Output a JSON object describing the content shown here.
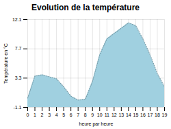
{
  "chart_data": {
    "type": "area",
    "title": "Evolution de la température",
    "xlabel": "heure par heure",
    "ylabel": "Température en °C",
    "x": [
      0,
      1,
      2,
      3,
      4,
      5,
      6,
      7,
      8,
      9,
      10,
      11,
      12,
      13,
      14,
      15,
      16,
      17,
      18,
      19
    ],
    "values": [
      0.3,
      3.6,
      3.8,
      3.5,
      3.2,
      2.0,
      0.6,
      0.0,
      0.1,
      2.8,
      6.8,
      9.2,
      10.0,
      10.8,
      11.6,
      11.2,
      9.2,
      6.8,
      4.0,
      2.0
    ],
    "color": "#a0d0e0",
    "line_style": "dotted",
    "xlim": [
      0,
      19
    ],
    "ylim": [
      -1.1,
      12.1
    ],
    "xticks": [
      0,
      1,
      2,
      3,
      4,
      5,
      6,
      7,
      8,
      9,
      10,
      11,
      12,
      13,
      14,
      15,
      16,
      17,
      18,
      19
    ],
    "yticks": [
      -1.1,
      3.3,
      7.7,
      12.1
    ],
    "grid": true
  }
}
